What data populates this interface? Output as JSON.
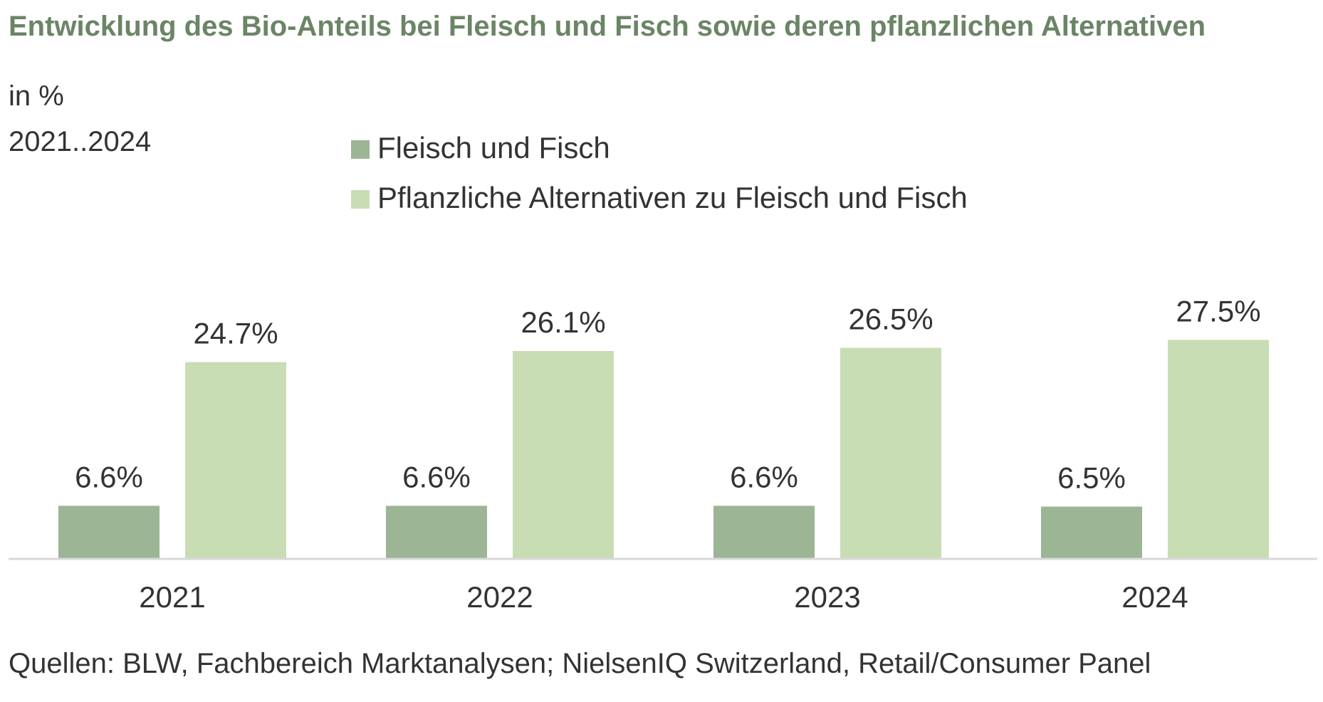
{
  "colors": {
    "title": "#6b8566",
    "text": "#333333",
    "axis": "#d9d9d9",
    "series_1": "#9bb595",
    "series_2": "#c9ddb5"
  },
  "chart_data": {
    "type": "bar",
    "title": "Entwicklung des Bio-Anteils bei Fleisch und Fisch sowie deren pflanzlichen Alternativen",
    "subtitle_unit": "in %",
    "subtitle_period": "2021..2024",
    "categories": [
      "2021",
      "2022",
      "2023",
      "2024"
    ],
    "series": [
      {
        "name": "Fleisch und Fisch",
        "values": [
          6.6,
          6.6,
          6.6,
          6.5
        ],
        "labels": [
          "6.6%",
          "6.6%",
          "6.6%",
          "6.5%"
        ]
      },
      {
        "name": "Pflanzliche Alternativen zu Fleisch und Fisch",
        "values": [
          24.7,
          26.1,
          26.5,
          27.5
        ],
        "labels": [
          "24.7%",
          "26.1%",
          "26.5%",
          "27.5%"
        ]
      }
    ],
    "ylim": [
      0,
      30
    ],
    "grid": false,
    "legend_position": "top-center",
    "source": "Quellen: BLW, Fachbereich Marktanalysen; NielsenIQ Switzerland, Retail/Consumer Panel"
  }
}
